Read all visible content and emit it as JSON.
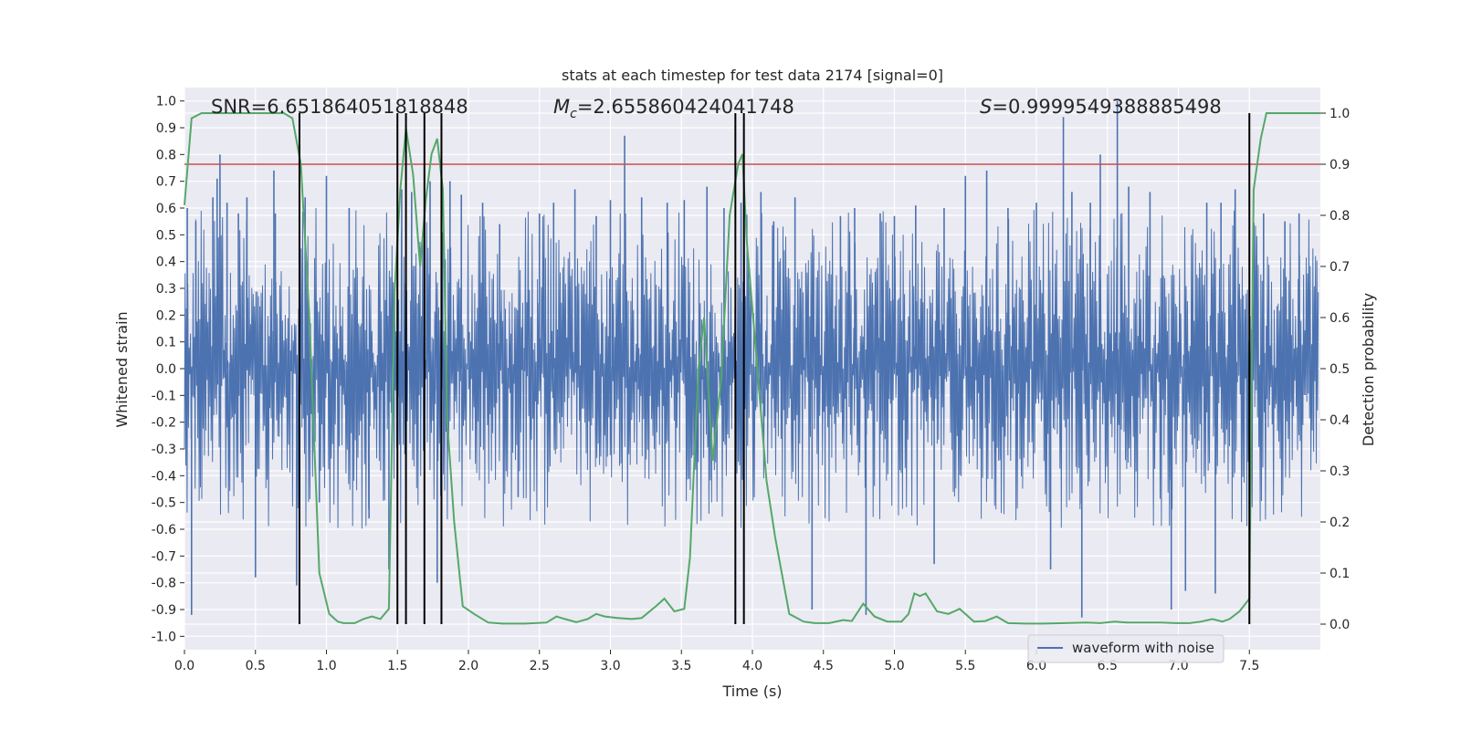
{
  "chart_data": {
    "type": "line",
    "title": "stats at each timestep for test data 2174 [signal=0]",
    "xlabel": "Time (s)",
    "ylabel": "Whitened strain",
    "y2label": "Detection probability",
    "xlim": [
      0.0,
      8.0
    ],
    "ylim": [
      -1.05,
      1.05
    ],
    "y2lim": [
      -0.05,
      1.05
    ],
    "x_ticks": [
      "0.0",
      "0.5",
      "1.0",
      "1.5",
      "2.0",
      "2.5",
      "3.0",
      "3.5",
      "4.0",
      "4.5",
      "5.0",
      "5.5",
      "6.0",
      "6.5",
      "7.0",
      "7.5"
    ],
    "y_ticks": [
      "-1.0",
      "-0.9",
      "-0.8",
      "-0.7",
      "-0.6",
      "-0.5",
      "-0.4",
      "-0.3",
      "-0.2",
      "-0.1",
      "0.0",
      "0.1",
      "0.2",
      "0.3",
      "0.4",
      "0.5",
      "0.6",
      "0.7",
      "0.8",
      "0.9",
      "1.0"
    ],
    "y2_ticks": [
      "0.0",
      "0.1",
      "0.2",
      "0.3",
      "0.4",
      "0.5",
      "0.6",
      "0.7",
      "0.8",
      "0.9",
      "1.0"
    ],
    "grid": true,
    "legend_position": "lower-right",
    "annotations": {
      "snr": "SNR=6.651864051818848",
      "mc_sym": "M",
      "mc_sub": "c",
      "mc_value": "=2.655860424041748",
      "s_sym": "S",
      "s_value": "=0.9999549388885498"
    },
    "threshold": {
      "value": 0.9,
      "axis": "right",
      "color": "#c44e52"
    },
    "vertical_lines": {
      "x": [
        0.81,
        1.5,
        1.56,
        1.69,
        1.81,
        3.88,
        3.94,
        7.5
      ],
      "y2_range": [
        0.0,
        1.0
      ],
      "color": "#000000"
    },
    "series": [
      {
        "name": "waveform with noise",
        "axis": "left",
        "color": "#4c72b0",
        "note_band": [
          -0.42,
          0.42
        ],
        "peaks": [
          [
            0.02,
            0.6
          ],
          [
            0.05,
            -0.92
          ],
          [
            0.08,
            0.55
          ],
          [
            0.2,
            0.64
          ],
          [
            0.23,
            0.71
          ],
          [
            0.25,
            0.8
          ],
          [
            0.3,
            0.62
          ],
          [
            0.38,
            0.58
          ],
          [
            0.44,
            0.64
          ],
          [
            0.5,
            -0.78
          ],
          [
            0.63,
            0.74
          ],
          [
            0.64,
            0.58
          ],
          [
            0.79,
            -0.81
          ],
          [
            0.85,
            0.64
          ],
          [
            0.95,
            -0.5
          ],
          [
            1.0,
            0.72
          ],
          [
            1.16,
            0.6
          ],
          [
            1.3,
            -0.56
          ],
          [
            1.44,
            -0.75
          ],
          [
            1.53,
            0.67
          ],
          [
            1.6,
            0.66
          ],
          [
            1.73,
            0.7
          ],
          [
            1.78,
            -0.8
          ],
          [
            1.87,
            0.7
          ],
          [
            1.95,
            0.65
          ],
          [
            2.1,
            0.62
          ],
          [
            2.22,
            0.54
          ],
          [
            2.35,
            -0.48
          ],
          [
            2.5,
            0.58
          ],
          [
            2.6,
            0.62
          ],
          [
            2.75,
            0.67
          ],
          [
            2.9,
            0.57
          ],
          [
            3.0,
            0.63
          ],
          [
            3.1,
            0.87
          ],
          [
            3.22,
            0.64
          ],
          [
            3.4,
            0.62
          ],
          [
            3.52,
            0.63
          ],
          [
            3.68,
            0.68
          ],
          [
            3.8,
            0.6
          ],
          [
            3.92,
            0.62
          ],
          [
            4.06,
            0.66
          ],
          [
            4.15,
            0.55
          ],
          [
            4.3,
            0.64
          ],
          [
            4.42,
            -0.9
          ],
          [
            4.62,
            0.57
          ],
          [
            4.72,
            0.6
          ],
          [
            4.8,
            -0.92
          ],
          [
            4.9,
            0.58
          ],
          [
            5.0,
            0.57
          ],
          [
            5.15,
            0.61
          ],
          [
            5.28,
            -0.73
          ],
          [
            5.35,
            0.6
          ],
          [
            5.5,
            0.72
          ],
          [
            5.65,
            0.74
          ],
          [
            5.8,
            0.6
          ],
          [
            6.0,
            0.62
          ],
          [
            6.1,
            -0.75
          ],
          [
            6.19,
            0.94
          ],
          [
            6.25,
            0.66
          ],
          [
            6.32,
            -0.93
          ],
          [
            6.38,
            0.62
          ],
          [
            6.45,
            0.8
          ],
          [
            6.57,
            1.0
          ],
          [
            6.65,
            0.68
          ],
          [
            6.8,
            0.66
          ],
          [
            6.95,
            -0.9
          ],
          [
            7.05,
            -0.83
          ],
          [
            7.2,
            0.62
          ],
          [
            7.26,
            -0.84
          ],
          [
            7.3,
            0.62
          ],
          [
            7.4,
            0.67
          ],
          [
            7.6,
            0.58
          ],
          [
            7.75,
            0.55
          ],
          [
            7.85,
            0.58
          ]
        ]
      },
      {
        "name": "",
        "axis": "right",
        "color": "#55a868",
        "x": [
          0.0,
          0.05,
          0.12,
          0.22,
          0.35,
          0.5,
          0.62,
          0.7,
          0.76,
          0.82,
          0.88,
          0.95,
          1.02,
          1.08,
          1.12,
          1.2,
          1.26,
          1.32,
          1.38,
          1.44,
          1.48,
          1.52,
          1.56,
          1.61,
          1.66,
          1.7,
          1.74,
          1.78,
          1.82,
          1.85,
          1.9,
          1.96,
          2.04,
          2.14,
          2.24,
          2.4,
          2.55,
          2.62,
          2.68,
          2.76,
          2.84,
          2.9,
          2.96,
          3.05,
          3.15,
          3.22,
          3.32,
          3.38,
          3.45,
          3.52,
          3.56,
          3.62,
          3.66,
          3.72,
          3.78,
          3.84,
          3.9,
          3.93,
          3.96,
          4.02,
          4.1,
          4.16,
          4.26,
          4.36,
          4.44,
          4.54,
          4.64,
          4.7,
          4.78,
          4.86,
          4.95,
          5.05,
          5.1,
          5.14,
          5.18,
          5.22,
          5.3,
          5.38,
          5.46,
          5.56,
          5.64,
          5.72,
          5.8,
          5.92,
          6.05,
          6.2,
          6.35,
          6.45,
          6.55,
          6.64,
          6.76,
          6.88,
          6.98,
          7.08,
          7.16,
          7.24,
          7.31,
          7.36,
          7.43,
          7.5,
          7.53,
          7.58,
          7.62,
          7.7,
          7.8,
          7.92,
          8.0
        ],
        "y": [
          0.82,
          0.99,
          1.0,
          1.0,
          1.0,
          1.0,
          1.0,
          1.0,
          0.99,
          0.9,
          0.6,
          0.1,
          0.02,
          0.005,
          0.002,
          0.002,
          0.01,
          0.015,
          0.01,
          0.03,
          0.65,
          0.85,
          0.97,
          0.88,
          0.7,
          0.83,
          0.92,
          0.95,
          0.85,
          0.4,
          0.2,
          0.035,
          0.02,
          0.003,
          0.001,
          0.001,
          0.003,
          0.015,
          0.01,
          0.004,
          0.01,
          0.02,
          0.015,
          0.012,
          0.01,
          0.012,
          0.035,
          0.05,
          0.025,
          0.03,
          0.13,
          0.5,
          0.6,
          0.32,
          0.48,
          0.8,
          0.9,
          0.92,
          0.75,
          0.55,
          0.28,
          0.17,
          0.02,
          0.005,
          0.002,
          0.002,
          0.008,
          0.006,
          0.04,
          0.015,
          0.005,
          0.005,
          0.02,
          0.06,
          0.055,
          0.06,
          0.025,
          0.02,
          0.03,
          0.005,
          0.006,
          0.015,
          0.002,
          0.001,
          0.001,
          0.002,
          0.003,
          0.002,
          0.005,
          0.003,
          0.003,
          0.003,
          0.002,
          0.002,
          0.005,
          0.01,
          0.005,
          0.01,
          0.025,
          0.05,
          0.85,
          0.95,
          1.0,
          1.0,
          1.0,
          1.0,
          1.0
        ]
      }
    ]
  }
}
